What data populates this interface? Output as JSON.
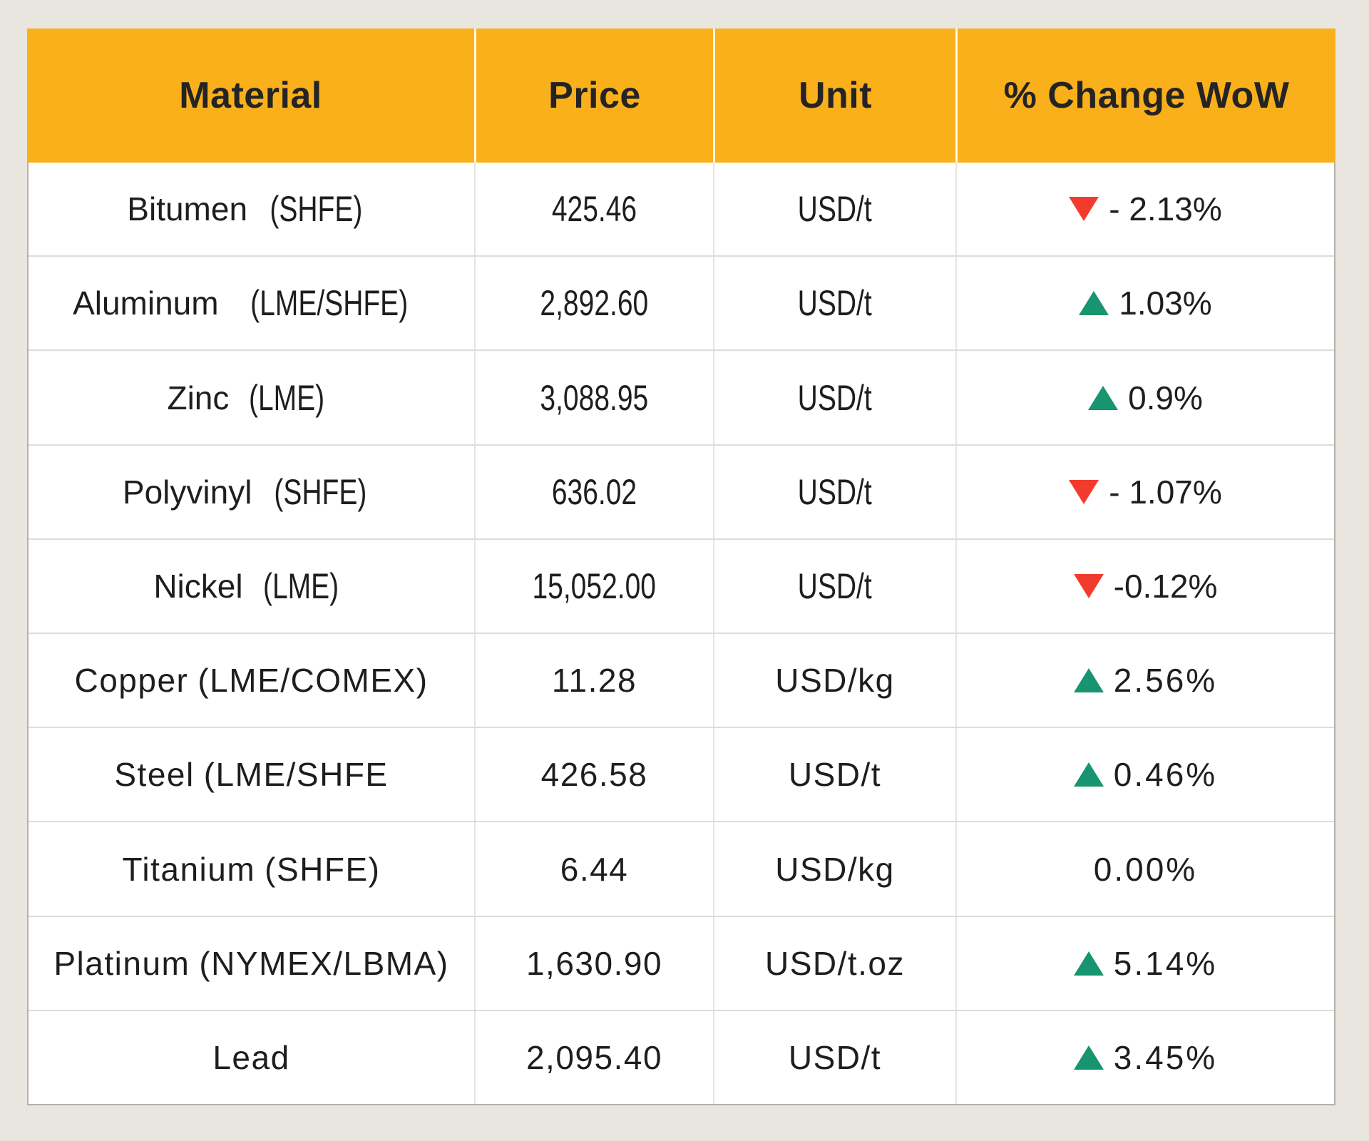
{
  "chart_data": {
    "type": "table",
    "headers": [
      "Material",
      "Price",
      "Unit",
      "% Change WoW"
    ],
    "rows": [
      {
        "material": "Bitumen",
        "exchange": "(SHFE)",
        "price": "425.46",
        "price_value": 425.46,
        "unit": "USD/t",
        "change_text": "- 2.13%",
        "change_direction": "down",
        "change_pct": -2.13,
        "font_variant": "condensed"
      },
      {
        "material": "Aluminum",
        "exchange": "(LME/SHFE)",
        "price": "2,892.60",
        "price_value": 2892.6,
        "unit": "USD/t",
        "change_text": "1.03%",
        "change_direction": "up",
        "change_pct": 1.03,
        "font_variant": "condensed"
      },
      {
        "material": "Zinc",
        "exchange": "(LME)",
        "price": "3,088.95",
        "price_value": 3088.95,
        "unit": "USD/t",
        "change_text": "0.9%",
        "change_direction": "up",
        "change_pct": 0.9,
        "font_variant": "condensed"
      },
      {
        "material": "Polyvinyl",
        "exchange": "(SHFE)",
        "price": "636.02",
        "price_value": 636.02,
        "unit": "USD/t",
        "change_text": "- 1.07%",
        "change_direction": "down",
        "change_pct": -1.07,
        "font_variant": "condensed"
      },
      {
        "material": "Nickel",
        "exchange": "(LME)",
        "price": "15,052.00",
        "price_value": 15052.0,
        "unit": "USD/t",
        "change_text": "-0.12%",
        "change_direction": "down",
        "change_pct": -0.12,
        "font_variant": "condensed"
      },
      {
        "material": "Copper",
        "exchange": "(LME/COMEX)",
        "price": "11.28",
        "price_value": 11.28,
        "unit": "USD/kg",
        "change_text": "2.56%",
        "change_direction": "up",
        "change_pct": 2.56,
        "font_variant": "regular"
      },
      {
        "material": "Steel",
        "exchange": "(LME/SHFE",
        "price": "426.58",
        "price_value": 426.58,
        "unit": "USD/t",
        "change_text": "0.46%",
        "change_direction": "up",
        "change_pct": 0.46,
        "font_variant": "regular"
      },
      {
        "material": "Titanium",
        "exchange": "(SHFE)",
        "price": "6.44",
        "price_value": 6.44,
        "unit": "USD/kg",
        "change_text": "0.00%",
        "change_direction": "none",
        "change_pct": 0.0,
        "font_variant": "regular"
      },
      {
        "material": "Platinum",
        "exchange": "(NYMEX/LBMA)",
        "price": "1,630.90",
        "price_value": 1630.9,
        "unit": "USD/t.oz",
        "change_text": "5.14%",
        "change_direction": "up",
        "change_pct": 5.14,
        "font_variant": "regular"
      },
      {
        "material": "Lead",
        "exchange": "",
        "price": "2,095.40",
        "price_value": 2095.4,
        "unit": "USD/t",
        "change_text": "3.45%",
        "change_direction": "up",
        "change_pct": 3.45,
        "font_variant": "regular"
      }
    ],
    "legend_position": "none",
    "grid": "row-and-column-dividers"
  },
  "colors": {
    "header_bg": "#F9B01A",
    "up_green": "#179470",
    "down_red": "#F33B2D",
    "page_bg": "#E9E5DF",
    "row_bg": "#FFFFFF",
    "text": "#1E1E1E"
  }
}
